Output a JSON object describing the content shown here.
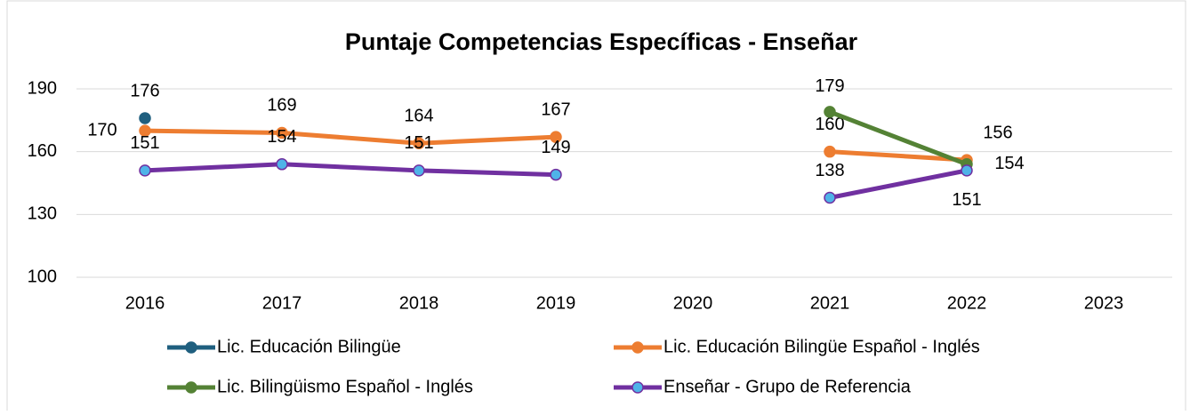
{
  "chart_data": {
    "type": "line",
    "title": "Puntaje Competencias Específicas - Enseñar",
    "categories": [
      "2016",
      "2017",
      "2018",
      "2019",
      "2020",
      "2021",
      "2022",
      "2023"
    ],
    "ylim": [
      100,
      190
    ],
    "yticks": [
      100,
      130,
      160,
      190
    ],
    "grid": true,
    "series": [
      {
        "name": "Lic. Educación Bilingüe",
        "color": "#1f5f7f",
        "marker_color": "#1f5f7f",
        "values": [
          176,
          null,
          null,
          null,
          null,
          null,
          null,
          null
        ]
      },
      {
        "name": "Lic. Educación Bilingüe Español - Inglés",
        "color": "#ed7d31",
        "marker_color": "#ed7d31",
        "values": [
          170,
          169,
          164,
          167,
          null,
          160,
          156,
          null
        ]
      },
      {
        "name": "Lic. Bilingüismo Español - Inglés",
        "color": "#548235",
        "marker_color": "#548235",
        "values": [
          null,
          null,
          null,
          null,
          null,
          179,
          154,
          null
        ]
      },
      {
        "name": "Enseñar - Grupo de Referencia",
        "color": "#7030a0",
        "marker_color": "#4fb3e8",
        "values": [
          151,
          154,
          151,
          149,
          null,
          138,
          151,
          null
        ]
      }
    ]
  }
}
